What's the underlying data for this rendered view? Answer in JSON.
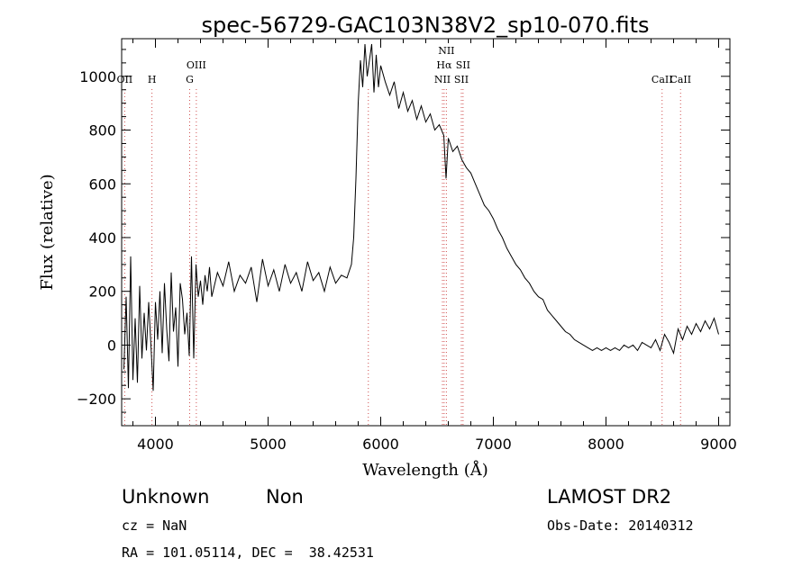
{
  "chart_data": {
    "type": "line",
    "title": "spec-56729-GAC103N38V2_sp10-070.fits",
    "xlabel": "Wavelength (Å)",
    "ylabel": "Flux (relative)",
    "xlim": [
      3700,
      9100
    ],
    "ylim": [
      -300,
      1140
    ],
    "x_ticks": [
      4000,
      5000,
      6000,
      7000,
      8000,
      9000
    ],
    "y_ticks": [
      -200,
      0,
      200,
      400,
      600,
      800,
      1000
    ],
    "grid": false,
    "series": [
      {
        "color": "#000000",
        "points": [
          [
            3720,
            -90
          ],
          [
            3740,
            180
          ],
          [
            3760,
            -160
          ],
          [
            3780,
            330
          ],
          [
            3800,
            -130
          ],
          [
            3820,
            100
          ],
          [
            3840,
            -140
          ],
          [
            3860,
            220
          ],
          [
            3880,
            -50
          ],
          [
            3900,
            120
          ],
          [
            3920,
            -20
          ],
          [
            3940,
            160
          ],
          [
            3960,
            0
          ],
          [
            3980,
            -170
          ],
          [
            4000,
            160
          ],
          [
            4020,
            20
          ],
          [
            4040,
            200
          ],
          [
            4060,
            -30
          ],
          [
            4080,
            230
          ],
          [
            4100,
            60
          ],
          [
            4120,
            -60
          ],
          [
            4140,
            270
          ],
          [
            4160,
            50
          ],
          [
            4180,
            140
          ],
          [
            4200,
            -80
          ],
          [
            4220,
            230
          ],
          [
            4240,
            170
          ],
          [
            4260,
            40
          ],
          [
            4280,
            120
          ],
          [
            4300,
            -40
          ],
          [
            4320,
            330
          ],
          [
            4340,
            -50
          ],
          [
            4360,
            300
          ],
          [
            4380,
            180
          ],
          [
            4400,
            240
          ],
          [
            4420,
            150
          ],
          [
            4440,
            260
          ],
          [
            4460,
            200
          ],
          [
            4480,
            290
          ],
          [
            4500,
            180
          ],
          [
            4550,
            270
          ],
          [
            4600,
            220
          ],
          [
            4650,
            310
          ],
          [
            4700,
            200
          ],
          [
            4750,
            260
          ],
          [
            4800,
            230
          ],
          [
            4850,
            290
          ],
          [
            4900,
            160
          ],
          [
            4950,
            320
          ],
          [
            5000,
            220
          ],
          [
            5050,
            280
          ],
          [
            5100,
            200
          ],
          [
            5150,
            300
          ],
          [
            5200,
            230
          ],
          [
            5250,
            270
          ],
          [
            5300,
            200
          ],
          [
            5350,
            310
          ],
          [
            5400,
            240
          ],
          [
            5450,
            270
          ],
          [
            5500,
            200
          ],
          [
            5550,
            290
          ],
          [
            5600,
            230
          ],
          [
            5650,
            260
          ],
          [
            5700,
            250
          ],
          [
            5740,
            300
          ],
          [
            5760,
            400
          ],
          [
            5780,
            620
          ],
          [
            5800,
            900
          ],
          [
            5820,
            1060
          ],
          [
            5840,
            960
          ],
          [
            5860,
            1120
          ],
          [
            5880,
            1000
          ],
          [
            5900,
            1060
          ],
          [
            5920,
            1120
          ],
          [
            5940,
            940
          ],
          [
            5960,
            1080
          ],
          [
            5980,
            960
          ],
          [
            6000,
            1040
          ],
          [
            6040,
            980
          ],
          [
            6080,
            930
          ],
          [
            6120,
            980
          ],
          [
            6160,
            880
          ],
          [
            6200,
            940
          ],
          [
            6240,
            870
          ],
          [
            6280,
            910
          ],
          [
            6320,
            840
          ],
          [
            6360,
            890
          ],
          [
            6400,
            830
          ],
          [
            6440,
            860
          ],
          [
            6480,
            800
          ],
          [
            6520,
            820
          ],
          [
            6560,
            780
          ],
          [
            6580,
            620
          ],
          [
            6600,
            770
          ],
          [
            6640,
            720
          ],
          [
            6680,
            740
          ],
          [
            6720,
            690
          ],
          [
            6760,
            660
          ],
          [
            6800,
            640
          ],
          [
            6840,
            600
          ],
          [
            6880,
            560
          ],
          [
            6920,
            520
          ],
          [
            6960,
            500
          ],
          [
            7000,
            470
          ],
          [
            7040,
            430
          ],
          [
            7080,
            400
          ],
          [
            7120,
            360
          ],
          [
            7160,
            330
          ],
          [
            7200,
            300
          ],
          [
            7240,
            280
          ],
          [
            7280,
            250
          ],
          [
            7320,
            230
          ],
          [
            7360,
            200
          ],
          [
            7400,
            180
          ],
          [
            7440,
            170
          ],
          [
            7480,
            130
          ],
          [
            7520,
            110
          ],
          [
            7560,
            90
          ],
          [
            7600,
            70
          ],
          [
            7640,
            50
          ],
          [
            7680,
            40
          ],
          [
            7720,
            20
          ],
          [
            7760,
            10
          ],
          [
            7800,
            0
          ],
          [
            7840,
            -10
          ],
          [
            7880,
            -20
          ],
          [
            7920,
            -10
          ],
          [
            7960,
            -20
          ],
          [
            8000,
            -10
          ],
          [
            8040,
            -20
          ],
          [
            8080,
            -10
          ],
          [
            8120,
            -20
          ],
          [
            8160,
            0
          ],
          [
            8200,
            -10
          ],
          [
            8240,
            0
          ],
          [
            8280,
            -20
          ],
          [
            8320,
            10
          ],
          [
            8360,
            0
          ],
          [
            8400,
            -10
          ],
          [
            8440,
            20
          ],
          [
            8480,
            -20
          ],
          [
            8520,
            40
          ],
          [
            8560,
            10
          ],
          [
            8600,
            -30
          ],
          [
            8640,
            60
          ],
          [
            8680,
            20
          ],
          [
            8720,
            70
          ],
          [
            8760,
            40
          ],
          [
            8800,
            80
          ],
          [
            8840,
            50
          ],
          [
            8880,
            90
          ],
          [
            8920,
            60
          ],
          [
            8960,
            100
          ],
          [
            9000,
            40
          ]
        ]
      }
    ],
    "line_markers": [
      {
        "label": "OII",
        "x": 3727
      },
      {
        "label": "H",
        "x": 3969
      },
      {
        "label": "G",
        "x": 4304
      },
      {
        "label": "OIII",
        "x": 4363
      },
      {
        "label": "",
        "x": 5890
      },
      {
        "label": "NII",
        "x": 6548
      },
      {
        "label": "Hα",
        "x": 6563
      },
      {
        "label": "NII",
        "x": 6583
      },
      {
        "label": "SII",
        "x": 6716
      },
      {
        "label": "SII",
        "x": 6731
      },
      {
        "label": "CaII",
        "x": 8498
      },
      {
        "label": "CaII",
        "x": 8662
      }
    ]
  },
  "footer": {
    "class_label": "Unknown",
    "subclass_label": "Non",
    "cz": "cz = NaN",
    "coords": "RA = 101.05114, DEC =  38.42531",
    "survey": "LAMOST DR2",
    "obs_date": "Obs-Date: 20140312"
  }
}
